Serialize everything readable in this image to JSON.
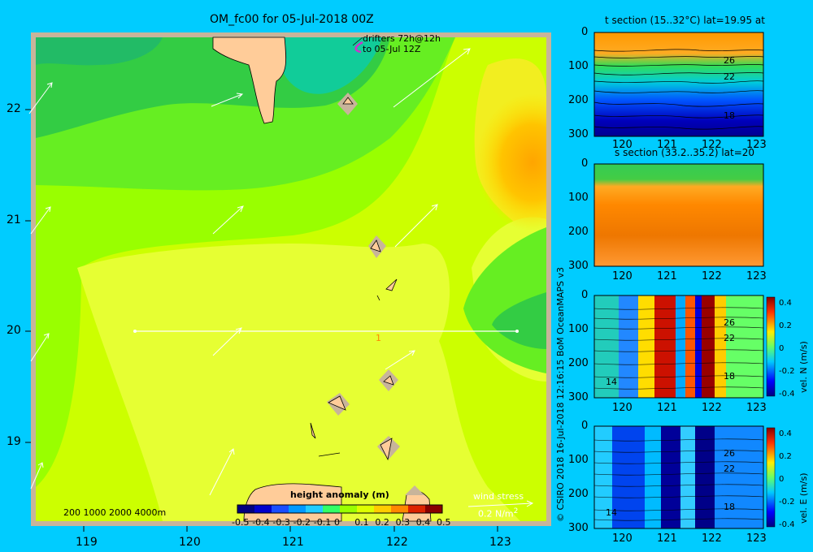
{
  "title": "OM_fc00 for 05-Jul-2018 00Z",
  "drifters": {
    "line1": "drifters 72h@12h",
    "line2": "to 05-Jul 12Z"
  },
  "map": {
    "lon_ticks": [
      "119",
      "120",
      "121",
      "122",
      "123"
    ],
    "lat_ticks": [
      "22",
      "21",
      "20",
      "19"
    ],
    "depth_legend": "200  1000  2000  4000m",
    "wind_label": "wind stress",
    "wind_unit": "0.2 N/m",
    "wind_unit_sup": "2",
    "section_marker": "1",
    "colors": {
      "background": "#00ccff",
      "land": "#ffcc99",
      "land_frame": "#c8b49a",
      "wind_arrow": "#ffffff"
    }
  },
  "colorbar": {
    "title": "height anomaly  (m)",
    "ticks": [
      "-0.5",
      "-0.4",
      "-0.3",
      "-0.2",
      "-0.1",
      "0",
      "0.1",
      "0.2",
      "0.3",
      "0.4",
      "0.5"
    ],
    "colors": [
      "#00007f",
      "#0000cc",
      "#1a4dff",
      "#0099ff",
      "#22ccff",
      "#33ff66",
      "#99ff00",
      "#ddff00",
      "#ffcc00",
      "#ff8800",
      "#dd2200",
      "#880000"
    ]
  },
  "credit": "© CSIRO 2018   16-Jul-2018 12:16:15 BoM OceanMAPS v3",
  "panels": [
    {
      "id": "t-section",
      "title": "t section (15..32°C) lat=19.95 at",
      "yticks": [
        "0",
        "100",
        "200",
        "300"
      ],
      "xticks": [
        "120",
        "121",
        "122",
        "123"
      ],
      "contour_labels": [
        "26",
        "22",
        "18"
      ]
    },
    {
      "id": "s-section",
      "title": "s section (33.2..35.2) lat=20",
      "yticks": [
        "0",
        "100",
        "200",
        "300"
      ],
      "xticks": [
        "120",
        "121",
        "122",
        "123"
      ]
    },
    {
      "id": "vel-n-section",
      "yticks": [
        "0",
        "100",
        "200",
        "300"
      ],
      "xticks": [
        "120",
        "121",
        "122",
        "123"
      ],
      "contour_labels": [
        "26",
        "22",
        "18",
        "14"
      ],
      "cbar_ticks": [
        "0.4",
        "0.2",
        "0",
        "-0.2",
        "-0.4"
      ],
      "cbar_label": "vel. N  (m/s)"
    },
    {
      "id": "vel-e-section",
      "yticks": [
        "0",
        "100",
        "200",
        "300"
      ],
      "xticks": [
        "120",
        "121",
        "122",
        "123"
      ],
      "contour_labels": [
        "26",
        "22",
        "18",
        "14"
      ],
      "cbar_ticks": [
        "0.4",
        "0.2",
        "0",
        "-0.2",
        "-0.4"
      ],
      "cbar_label": "vel. E  (m/s)"
    }
  ]
}
